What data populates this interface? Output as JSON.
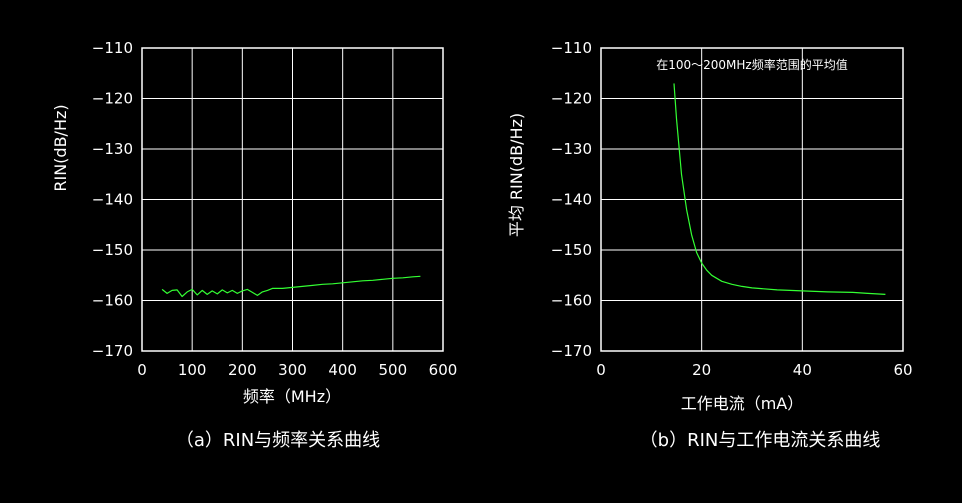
{
  "chart_data": [
    {
      "type": "line",
      "caption": "（a）RIN与频率关系曲线",
      "xlabel": "频率（MHz）",
      "ylabel": "RIN(dB/Hz)",
      "xlim": [
        0,
        600
      ],
      "ylim": [
        -170,
        -110
      ],
      "xticks": [
        0,
        100,
        200,
        300,
        400,
        500,
        600
      ],
      "yticks": [
        -110,
        -120,
        -130,
        -140,
        -150,
        -160,
        -170
      ],
      "ytick_labels": [
        "−110",
        "−120",
        "−130",
        "−140",
        "−150",
        "−160",
        "−170"
      ],
      "grid": true,
      "line_color": "#33ff33",
      "x": [
        40,
        50,
        60,
        70,
        80,
        90,
        100,
        110,
        120,
        130,
        140,
        150,
        160,
        170,
        180,
        190,
        200,
        210,
        220,
        230,
        240,
        250,
        260,
        280,
        300,
        320,
        340,
        360,
        380,
        400,
        420,
        440,
        460,
        480,
        500,
        520,
        540,
        555
      ],
      "y": [
        -157.8,
        -158.6,
        -158.0,
        -157.9,
        -159.2,
        -158.3,
        -157.8,
        -158.9,
        -158.0,
        -158.8,
        -158.1,
        -158.7,
        -157.9,
        -158.5,
        -158.0,
        -158.6,
        -158.1,
        -157.8,
        -158.4,
        -159.0,
        -158.3,
        -158.0,
        -157.6,
        -157.6,
        -157.4,
        -157.2,
        -157.0,
        -156.8,
        -156.7,
        -156.5,
        -156.3,
        -156.1,
        -156.0,
        -155.8,
        -155.6,
        -155.5,
        -155.3,
        -155.2
      ]
    },
    {
      "type": "line",
      "caption": "（b）RIN与工作电流关系曲线",
      "xlabel": "工作电流（mA）",
      "ylabel": "平均 RIN(dB/Hz)",
      "annotation": "在100～200MHz频率范围的平均值",
      "xlim": [
        0,
        60
      ],
      "ylim": [
        -170,
        -110
      ],
      "xticks": [
        0,
        20,
        40,
        60
      ],
      "yticks": [
        -110,
        -120,
        -130,
        -140,
        -150,
        -160,
        -170
      ],
      "ytick_labels": [
        "−110",
        "−120",
        "−130",
        "−140",
        "−150",
        "−160",
        "−170"
      ],
      "grid": true,
      "line_color": "#33ff33",
      "x": [
        14.5,
        15,
        16,
        17,
        18,
        19,
        20,
        21,
        22,
        24,
        26,
        28,
        30,
        35,
        40,
        45,
        50,
        53,
        56.5
      ],
      "y": [
        -117,
        -124,
        -135,
        -142,
        -147,
        -150.5,
        -152.6,
        -154,
        -155,
        -156.2,
        -156.8,
        -157.2,
        -157.5,
        -157.9,
        -158.1,
        -158.3,
        -158.4,
        -158.6,
        -158.8
      ]
    }
  ]
}
